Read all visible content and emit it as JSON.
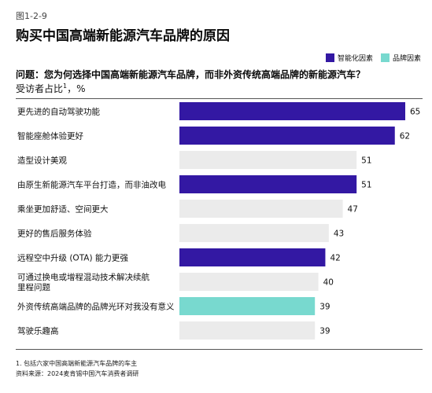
{
  "figure_label": "图1-2-9",
  "title": "购买中国高端新能源汽车品牌的原因",
  "question": "问题：您为何选择中国高端新能源汽车品牌，而非外资传统高端品牌的新能源汽车？",
  "unit_text": "受访者占比",
  "unit_sup": "1",
  "unit_suffix": "，%",
  "legend": [
    {
      "name": "智能化因素",
      "color": "#3318a3"
    },
    {
      "name": "品牌因素",
      "color": "#78d9cf"
    }
  ],
  "footnotes": [
    "1.    包括六家中国高端新能源汽车品牌的车主",
    "资料来源：2024麦肯锡中国汽车消费者调研"
  ],
  "chart_data": {
    "type": "bar",
    "orientation": "horizontal",
    "xlim": [
      0,
      65
    ],
    "categories": [
      [
        "更先进的自动驾驶功能"
      ],
      [
        "智能座舱体验更好"
      ],
      [
        "造型设计美观"
      ],
      [
        "由原生新能源汽车平台打造，而非油改电"
      ],
      [
        "乘坐更加舒适、空间更大"
      ],
      [
        "更好的售后服务体验"
      ],
      [
        "远程空中升级 (OTA) 能力更强"
      ],
      [
        "可通过换电或增程混动技术解决续航",
        "里程问题"
      ],
      [
        "外资传统高端品牌的品牌光环对我没有意义"
      ],
      [
        "驾驶乐趣高"
      ]
    ],
    "values": [
      65,
      62,
      51,
      51,
      47,
      43,
      42,
      40,
      39,
      39
    ],
    "bar_category": [
      "智能化因素",
      "智能化因素",
      "other",
      "智能化因素",
      "other",
      "other",
      "智能化因素",
      "other",
      "品牌因素",
      "other"
    ],
    "colors": {
      "智能化因素": "#3318a3",
      "品牌因素": "#78d9cf",
      "other": "#ebebeb"
    },
    "grid": false,
    "legend_position": "top-right"
  }
}
